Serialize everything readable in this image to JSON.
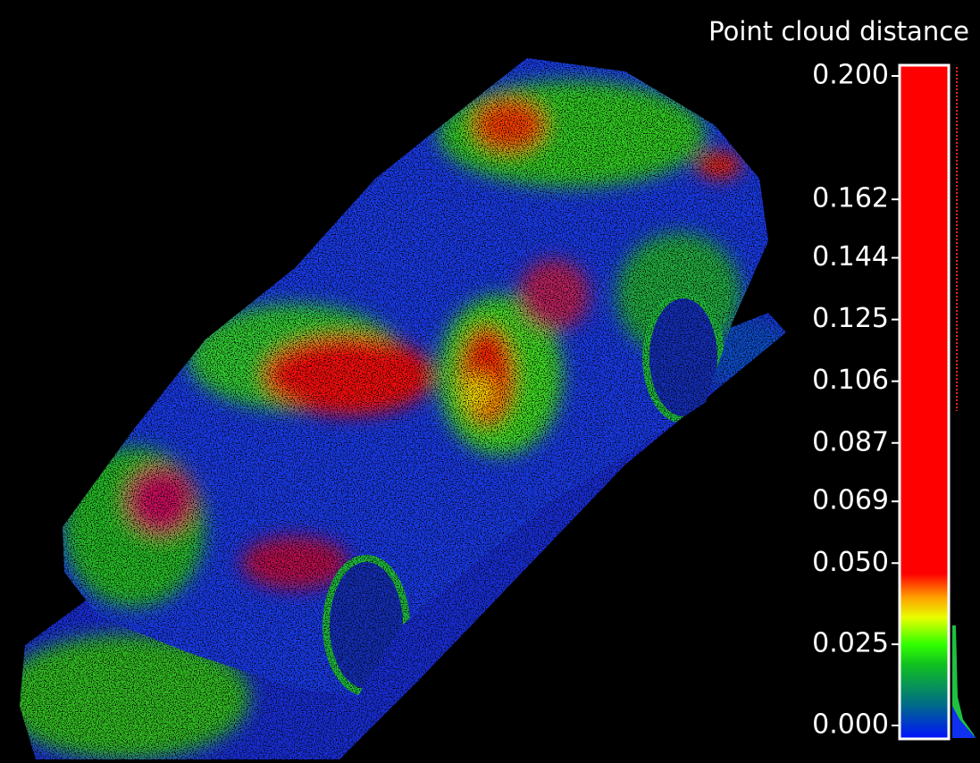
{
  "chart_data": {
    "type": "colorbar",
    "title": "Point cloud distance",
    "ylim": [
      0,
      0.2
    ],
    "yticks": [
      {
        "value": 0,
        "label": "0.000"
      },
      0.025,
      {
        "value": 0.05,
        "label": "0.050"
      },
      0.069,
      0.087,
      0.106,
      0.125,
      0.144,
      0.162,
      {
        "value": 0.2,
        "label": "0.200"
      }
    ]
  }
}
